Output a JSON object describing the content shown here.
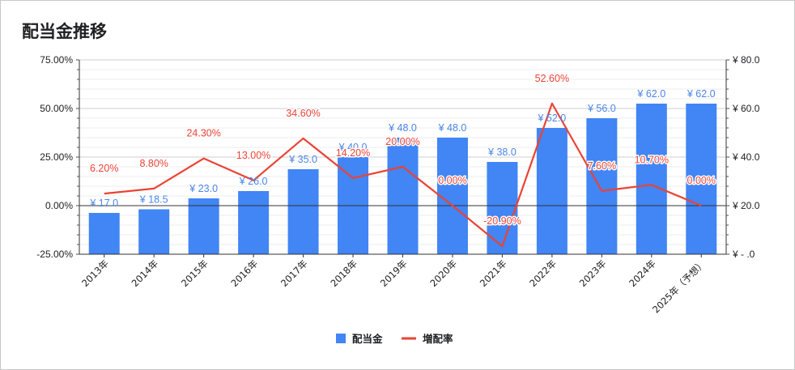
{
  "title": "配当金推移",
  "colors": {
    "bar": "#4285f4",
    "line": "#ea4335",
    "bar_label": "#4a86e8",
    "line_label": "#ea4335"
  },
  "chart_data": {
    "type": "bar+line",
    "title": "配当金推移",
    "categories": [
      "2013年",
      "2014年",
      "2015年",
      "2016年",
      "2017年",
      "2018年",
      "2019年",
      "2020年",
      "2021年",
      "2022年",
      "2023年",
      "2024年",
      "2025年（予想）"
    ],
    "series": [
      {
        "name": "配当金",
        "type": "bar",
        "axis": "right",
        "values": [
          17.0,
          18.5,
          23.0,
          26.0,
          35.0,
          40.0,
          48.0,
          48.0,
          38.0,
          52.0,
          56.0,
          62.0,
          62.0
        ],
        "labels": [
          "¥ 17.0",
          "¥ 18.5",
          "¥ 23.0",
          "¥ 26.0",
          "¥ 35.0",
          "¥ 40.0",
          "¥ 48.0",
          "¥ 48.0",
          "¥ 38.0",
          "¥ 52.0",
          "¥ 56.0",
          "¥ 62.0",
          "¥ 62.0"
        ]
      },
      {
        "name": "増配率",
        "type": "line",
        "axis": "left",
        "values": [
          6.2,
          8.8,
          24.3,
          13.0,
          34.6,
          14.2,
          20.0,
          0.0,
          -20.9,
          52.6,
          7.6,
          10.7,
          0.0
        ],
        "labels": [
          "6.20%",
          "8.80%",
          "24.30%",
          "13.00%",
          "34.60%",
          "14.20%",
          "20.00%",
          "0.00%",
          "-20.90%",
          "52.60%",
          "7.60%",
          "10.70%",
          "0.00%"
        ]
      }
    ],
    "left_axis": {
      "min": -25,
      "max": 75,
      "ticks": [
        75,
        50,
        25,
        0,
        -25
      ],
      "tick_labels": [
        "75.00%",
        "50.00%",
        "25.00%",
        "0.00%",
        "-25.00%"
      ]
    },
    "right_axis": {
      "min": 0,
      "max": 80,
      "ticks": [
        80,
        60,
        40,
        20,
        0
      ],
      "tick_labels": [
        "¥ 80.0",
        "¥ 60.0",
        "¥ 40.0",
        "¥ 20.0",
        "¥ -  .0"
      ]
    },
    "grid": true,
    "legend_position": "bottom",
    "legend": [
      "配当金",
      "増配率"
    ]
  }
}
